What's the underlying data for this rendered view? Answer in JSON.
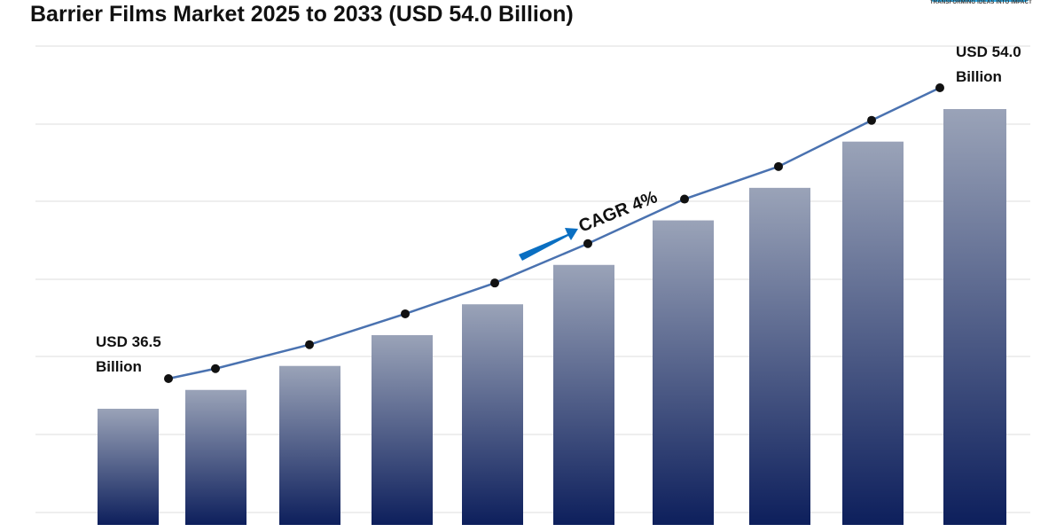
{
  "title": "Barrier Films Market 2025 to 2033 (USD 54.0 Billion)",
  "logo": {
    "tagline": "TRANSFORMING IDEAS INTO IMPACT",
    "color": "#2aa7e0"
  },
  "chart_data": {
    "type": "bar",
    "title": "Barrier Films Market 2025 to 2033 (USD 54.0 Billion)",
    "values": [
      36.5,
      37.6,
      39.0,
      40.8,
      42.6,
      44.9,
      47.5,
      49.4,
      52.1,
      54.0
    ],
    "unit": "USD Billion",
    "trend_line": true,
    "grid": true,
    "annotations": {
      "start_label": [
        "USD 36.5",
        "Billion"
      ],
      "end_label": [
        "USD 54.0",
        "Billion"
      ],
      "cagr": "CAGR 4%"
    },
    "colors": {
      "bar_top": "#9aa3b8",
      "bar_bottom": "#0d1f5c",
      "line": "#4a72b0",
      "arrow": "#0a6fc2",
      "marker": "#111111"
    }
  }
}
